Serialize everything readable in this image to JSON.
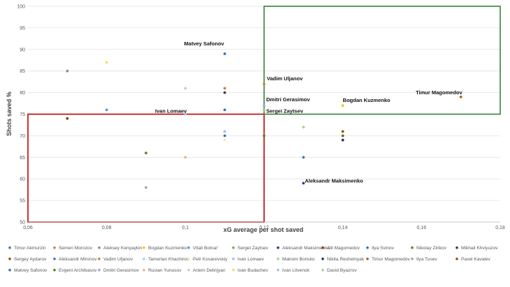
{
  "chart_data": {
    "type": "scatter",
    "title": "",
    "xlabel": "xG average per shot saved",
    "ylabel": "Shots saved %",
    "xlim": [
      0.06,
      0.18
    ],
    "ylim": [
      50,
      100
    ],
    "xticks": [
      {
        "v": 0.06,
        "label": "0,06"
      },
      {
        "v": 0.08,
        "label": "0,08"
      },
      {
        "v": 0.1,
        "label": "0,1"
      },
      {
        "v": 0.12,
        "label": "0,12"
      },
      {
        "v": 0.14,
        "label": "0,14"
      },
      {
        "v": 0.16,
        "label": "0,16"
      },
      {
        "v": 0.18,
        "label": "0,18"
      }
    ],
    "yticks": [
      {
        "v": 50,
        "label": "50"
      },
      {
        "v": 55,
        "label": "55"
      },
      {
        "v": 60,
        "label": "60"
      },
      {
        "v": 65,
        "label": "65"
      },
      {
        "v": 70,
        "label": "70"
      },
      {
        "v": 75,
        "label": "75"
      },
      {
        "v": 80,
        "label": "80"
      },
      {
        "v": 85,
        "label": "85"
      },
      {
        "v": 90,
        "label": "90"
      },
      {
        "v": 95,
        "label": "95"
      },
      {
        "v": 100,
        "label": "100"
      }
    ],
    "grid": "horizontal",
    "legend_position": "bottom",
    "series": [
      {
        "name": "Timur Akmurzin",
        "x": 0.11,
        "y": 76,
        "color": "#4472c4"
      },
      {
        "name": "Semen Morozov",
        "x": 0.11,
        "y": 81,
        "color": "#c5833f"
      },
      {
        "name": "Aleksey Kenyaykin",
        "x": 0.07,
        "y": 85,
        "color": "#8c8c8c"
      },
      {
        "name": "Bogdan Kuzmenko",
        "x": 0.14,
        "y": 77,
        "color": "#ffc000",
        "label": true
      },
      {
        "name": "Vitali Botnar'",
        "x": 0.08,
        "y": 76,
        "color": "#5b9bd5"
      },
      {
        "name": "Sergei Zaytsev",
        "x": 0.12,
        "y": 76,
        "color": "#70ad47",
        "label": true
      },
      {
        "name": "Aleksandr Maksimenko",
        "x": 0.13,
        "y": 59,
        "color": "#264478",
        "label": true
      },
      {
        "name": "Alil Magomedov",
        "x": 0.07,
        "y": 74,
        "color": "#843c0c"
      },
      {
        "name": "Ilya Svinov",
        "x": 0.11,
        "y": 70,
        "color": "#2e75b6"
      },
      {
        "name": "Nikolay Zirikov",
        "x": 0.09,
        "y": 66,
        "color": "#548235"
      },
      {
        "name": "Mikhail Khviyuzov",
        "x": 0.11,
        "y": 80,
        "color": "#2f3f5f"
      },
      {
        "name": "Sergey Aydarov",
        "x": 0.14,
        "y": 70,
        "color": "#806000"
      },
      {
        "name": "Aleksandr Mironov",
        "x": 0.13,
        "y": 65,
        "color": "#4472c4"
      },
      {
        "name": "Vadim Uljanov",
        "x": 0.12,
        "y": 82,
        "color": "#c5833f",
        "label": true
      },
      {
        "name": "Tamerlan Khachirov",
        "x": 0.11,
        "y": 71,
        "color": "#b4c7e7"
      },
      {
        "name": "Petr Kosarevskiy",
        "x": 0.11,
        "y": 69,
        "color": "#ffe699"
      },
      {
        "name": "Ivan Lomaev",
        "x": 0.1,
        "y": 75,
        "color": "#9dc3e6",
        "label": true
      },
      {
        "name": "Maksim Borisko",
        "x": 0.13,
        "y": 72,
        "color": "#a9d18e"
      },
      {
        "name": "Nikita Reshetnyak",
        "x": 0.14,
        "y": 69,
        "color": "#1f3864"
      },
      {
        "name": "Timur Magomedov",
        "x": 0.17,
        "y": 79,
        "color": "#c55a11",
        "label": true
      },
      {
        "name": "Ilya Tusev",
        "x": 0.09,
        "y": 58,
        "color": "#a5a5a5"
      },
      {
        "name": "Pavel Kavalev",
        "x": 0.14,
        "y": 71,
        "color": "#7f6000"
      },
      {
        "name": "Matvey Safonov",
        "x": 0.11,
        "y": 89,
        "color": "#2e75b6",
        "label": true
      },
      {
        "name": "Evgeni Archibasov",
        "x": 0.12,
        "y": 70,
        "color": "#548235"
      },
      {
        "name": "Dmitri Gerasimov",
        "x": 0.12,
        "y": 77,
        "color": "#8faadc",
        "label": true
      },
      {
        "name": "Ruslan Yunusov",
        "x": 0.1,
        "y": 65,
        "color": "#f4b183"
      },
      {
        "name": "Artem Delinjyan",
        "x": 0.1,
        "y": 81,
        "color": "#c9c9c9"
      },
      {
        "name": "Ivan Budachev",
        "x": 0.08,
        "y": 87,
        "color": "#ffd966"
      },
      {
        "name": "Ivan Litvenok",
        "x": 0.11,
        "y": 71,
        "color": "#9dc3e6"
      },
      {
        "name": "David Byazrov",
        "x": 0.12,
        "y": 76,
        "color": "#a9d18e"
      }
    ],
    "annotations": [
      {
        "type": "box",
        "color": "#c00000",
        "x0": 0.06,
        "x1": 0.12,
        "y0": 50,
        "y1": 75
      },
      {
        "type": "box",
        "color": "#38803c",
        "x0": 0.12,
        "x1": 0.18,
        "y0": 75,
        "y1": 100
      }
    ]
  }
}
